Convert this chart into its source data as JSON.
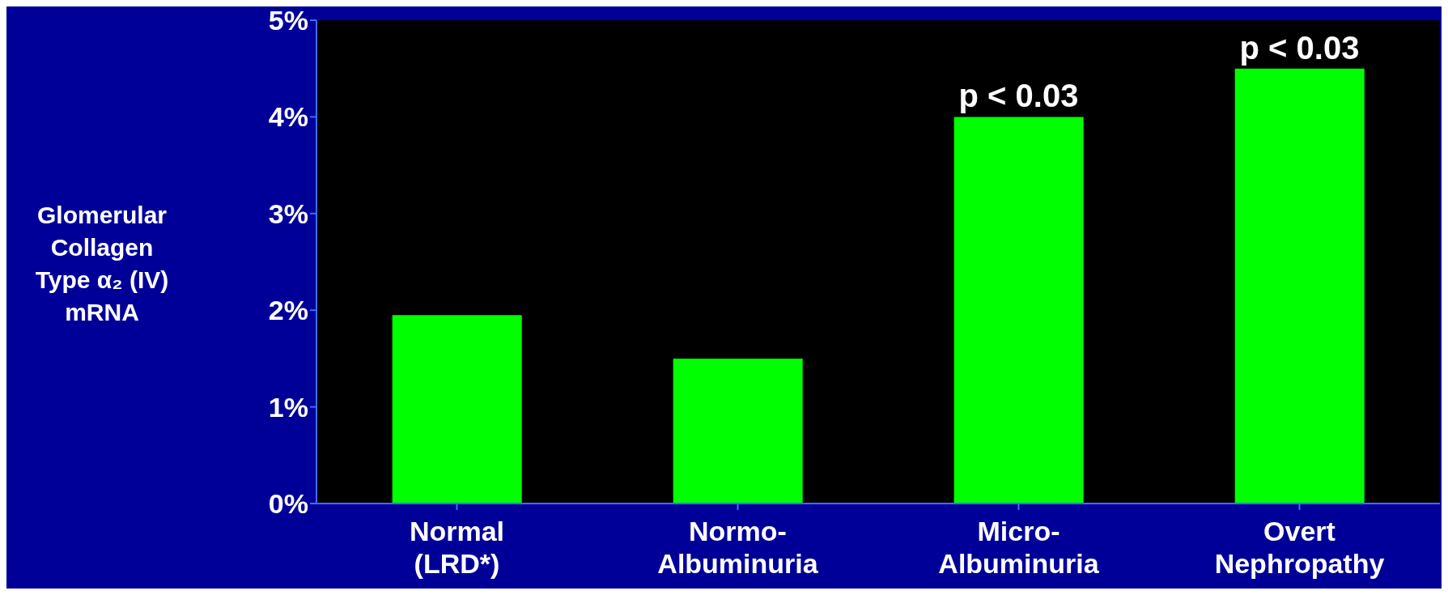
{
  "chart_data": {
    "type": "bar",
    "ylabel": "Glomerular\nCollagen\nType α₂ (IV)\nmRNA",
    "categories": [
      "Normal\n(LRD*)",
      "Normo-\nAlbuminuria",
      "Micro-\nAlbuminuria",
      "Overt\nNephropathy"
    ],
    "values": [
      1.95,
      1.5,
      4.0,
      4.5
    ],
    "color": "#00ff00",
    "ylim": [
      0,
      5
    ],
    "yticks": [
      {
        "value": 0,
        "label": "0%"
      },
      {
        "value": 1,
        "label": "1%"
      },
      {
        "value": 2,
        "label": "2%"
      },
      {
        "value": 3,
        "label": "3%"
      },
      {
        "value": 4,
        "label": "4%"
      },
      {
        "value": 5,
        "label": "5%"
      }
    ],
    "grid": false,
    "annotations": [
      {
        "text": "p < 0.03",
        "x": "Micro-\nAlbuminuria",
        "y": 4.0
      },
      {
        "text": "p < 0.03",
        "x": "Overt\nNephropathy",
        "y": 4.5
      }
    ]
  }
}
